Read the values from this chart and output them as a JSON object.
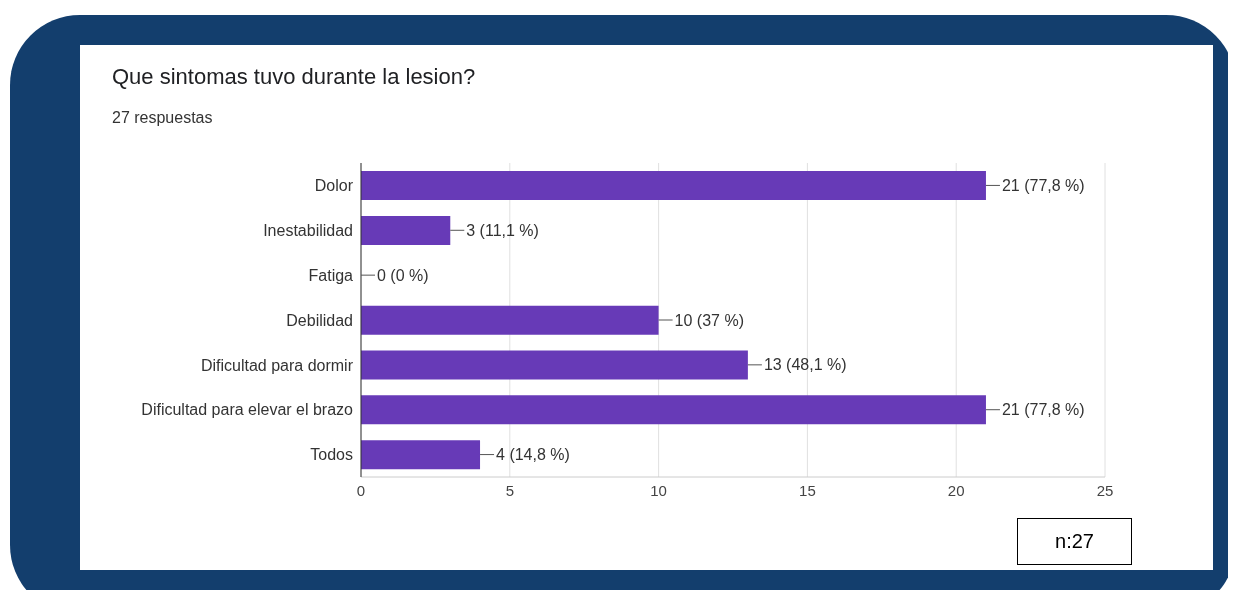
{
  "chart_data": {
    "type": "bar",
    "orientation": "horizontal",
    "title": "Que sintomas tuvo durante la lesion?",
    "subtitle": "27 respuestas",
    "categories": [
      "Dolor",
      "Inestabilidad",
      "Fatiga",
      "Debilidad",
      "Dificultad para dormir",
      "Dificultad para elevar el brazo",
      "Todos"
    ],
    "values": [
      21,
      3,
      0,
      10,
      13,
      21,
      4
    ],
    "value_labels": [
      "21 (77,8 %)",
      "3 (11,1 %)",
      "0 (0 %)",
      "10 (37 %)",
      "13 (48,1 %)",
      "21 (77,8 %)",
      "4 (14,8 %)"
    ],
    "color": "#673ab7",
    "xlim": [
      0,
      25
    ],
    "xticks": [
      0,
      5,
      10,
      15,
      20,
      25
    ],
    "grid": "x",
    "legend": false,
    "annotations": [
      "n:27"
    ]
  }
}
